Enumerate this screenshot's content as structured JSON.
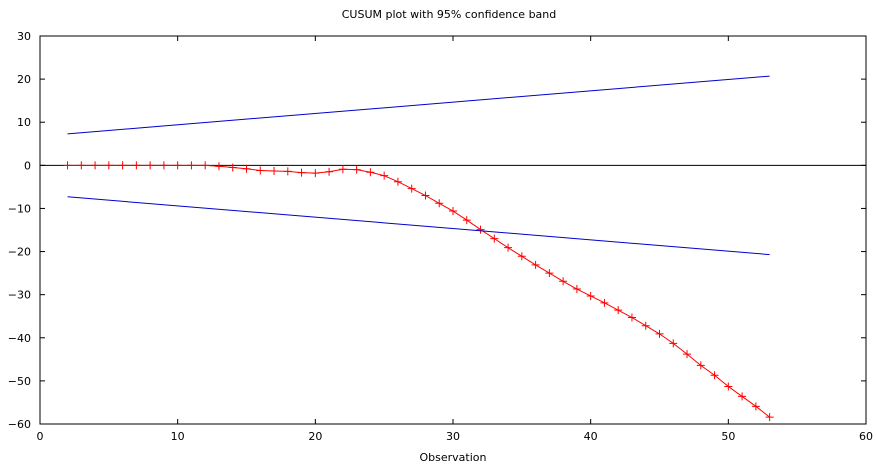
{
  "chart_data": {
    "type": "line",
    "title": "CUSUM plot with 95% confidence band",
    "xlabel": "Observation",
    "ylabel": "",
    "xlim": [
      0,
      60
    ],
    "ylim": [
      -60,
      30
    ],
    "xticks": [
      0,
      10,
      20,
      30,
      40,
      50,
      60
    ],
    "yticks": [
      30,
      20,
      10,
      0,
      -10,
      -20,
      -30,
      -40,
      -50,
      -60
    ],
    "grid": false,
    "legend": "none",
    "zero_line": true,
    "series": [
      {
        "color": "#ff0000",
        "marker": "plus",
        "x": [
          2,
          3,
          4,
          5,
          6,
          7,
          8,
          9,
          10,
          11,
          12,
          13,
          14,
          15,
          16,
          17,
          18,
          19,
          20,
          21,
          22,
          23,
          24,
          25,
          26,
          27,
          28,
          29,
          30,
          31,
          32,
          33,
          34,
          35,
          36,
          37,
          38,
          39,
          40,
          41,
          42,
          43,
          44,
          45,
          46,
          47,
          48,
          49,
          50,
          51,
          52,
          53
        ],
        "y": [
          0,
          0,
          0,
          0,
          0,
          0,
          0,
          0,
          0,
          0,
          0,
          -0.2,
          -0.5,
          -0.8,
          -1.2,
          -1.3,
          -1.4,
          -1.7,
          -1.8,
          -1.5,
          -0.9,
          -1.0,
          -1.6,
          -2.4,
          -3.8,
          -5.4,
          -7.0,
          -8.8,
          -10.6,
          -12.7,
          -14.9,
          -17.0,
          -19.1,
          -21.1,
          -23.1,
          -25.0,
          -26.9,
          -28.7,
          -30.3,
          -31.9,
          -33.6,
          -35.3,
          -37.2,
          -39.1,
          -41.3,
          -43.8,
          -46.4,
          -48.7,
          -51.3,
          -53.6,
          -55.9,
          -58.4
        ]
      },
      {
        "color": "#0000cc",
        "marker": "none",
        "x": [
          2,
          53
        ],
        "y": [
          7.3,
          20.7
        ]
      },
      {
        "color": "#0000cc",
        "marker": "none",
        "x": [
          2,
          53
        ],
        "y": [
          -7.3,
          -20.7
        ]
      }
    ]
  }
}
